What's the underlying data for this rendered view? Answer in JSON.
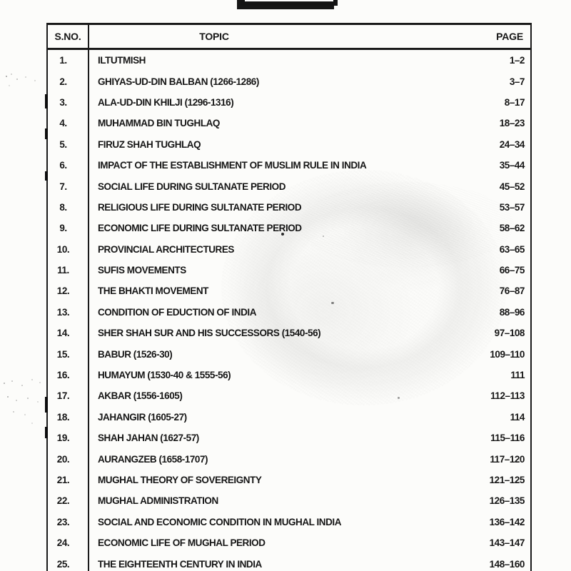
{
  "table": {
    "headers": {
      "sno": "S.NO.",
      "topic": "TOPIC",
      "page": "PAGE"
    },
    "rows": [
      {
        "sno": "1.",
        "topic": "ILTUTMISH",
        "page": "1–2"
      },
      {
        "sno": "2.",
        "topic": "GHIYAS-UD-DIN BALBAN (1266-1286)",
        "page": "3–7"
      },
      {
        "sno": "3.",
        "topic": "ALA-UD-DIN KHILJI (1296-1316)",
        "page": "8–17"
      },
      {
        "sno": "4.",
        "topic": "MUHAMMAD BIN TUGHLAQ",
        "page": "18–23"
      },
      {
        "sno": "5.",
        "topic": "FIRUZ SHAH TUGHLAQ",
        "page": "24–34"
      },
      {
        "sno": "6.",
        "topic": "IMPACT OF THE ESTABLISHMENT OF MUSLIM RULE IN INDIA",
        "page": "35–44"
      },
      {
        "sno": "7.",
        "topic": "SOCIAL LIFE DURING SULTANATE PERIOD",
        "page": "45–52"
      },
      {
        "sno": "8.",
        "topic": "RELIGIOUS LIFE DURING SULTANATE PERIOD",
        "page": "53–57"
      },
      {
        "sno": "9.",
        "topic": "ECONOMIC LIFE DURING SULTANATE PERIOD",
        "page": "58–62"
      },
      {
        "sno": "10.",
        "topic": "PROVINCIAL ARCHITECTURES",
        "page": "63–65"
      },
      {
        "sno": "11.",
        "topic": "SUFIS MOVEMENTS",
        "page": "66–75"
      },
      {
        "sno": "12.",
        "topic": "THE BHAKTI MOVEMENT",
        "page": "76–87"
      },
      {
        "sno": "13.",
        "topic": "CONDITION OF EDUCTION OF INDIA",
        "page": "88–96"
      },
      {
        "sno": "14.",
        "topic": "SHER SHAH SUR AND HIS  SUCCESSORS (1540-56)",
        "page": "97–108"
      },
      {
        "sno": "15.",
        "topic": "BABUR (1526-30)",
        "page": "109–110"
      },
      {
        "sno": "16.",
        "topic": "HUMAYUM (1530-40 & 1555-56)",
        "page": "111"
      },
      {
        "sno": "17.",
        "topic": "AKBAR (1556-1605)",
        "page": "112–113"
      },
      {
        "sno": "18.",
        "topic": "JAHANGIR (1605-27)",
        "page": "114"
      },
      {
        "sno": "19.",
        "topic": "SHAH JAHAN (1627-57)",
        "page": "115–116"
      },
      {
        "sno": "20.",
        "topic": "AURANGZEB (1658-1707)",
        "page": "117–120"
      },
      {
        "sno": "21.",
        "topic": "MUGHAL THEORY OF SOVEREIGNTY",
        "page": "121–125"
      },
      {
        "sno": "22.",
        "topic": "MUGHAL ADMINISTRATION",
        "page": "126–135"
      },
      {
        "sno": "23.",
        "topic": "SOCIAL AND ECONOMIC CONDITION IN MUGHAL INDIA",
        "page": "136–142"
      },
      {
        "sno": "24.",
        "topic": "ECONOMIC LIFE OF MUGHAL PERIOD",
        "page": "143–147"
      },
      {
        "sno": "25.",
        "topic": "THE EIGHTEENTH CENTURY IN INDIA",
        "page": "148–160"
      }
    ]
  },
  "colors": {
    "ink": "#1a1a1a",
    "paper": "#fcfcfa"
  }
}
